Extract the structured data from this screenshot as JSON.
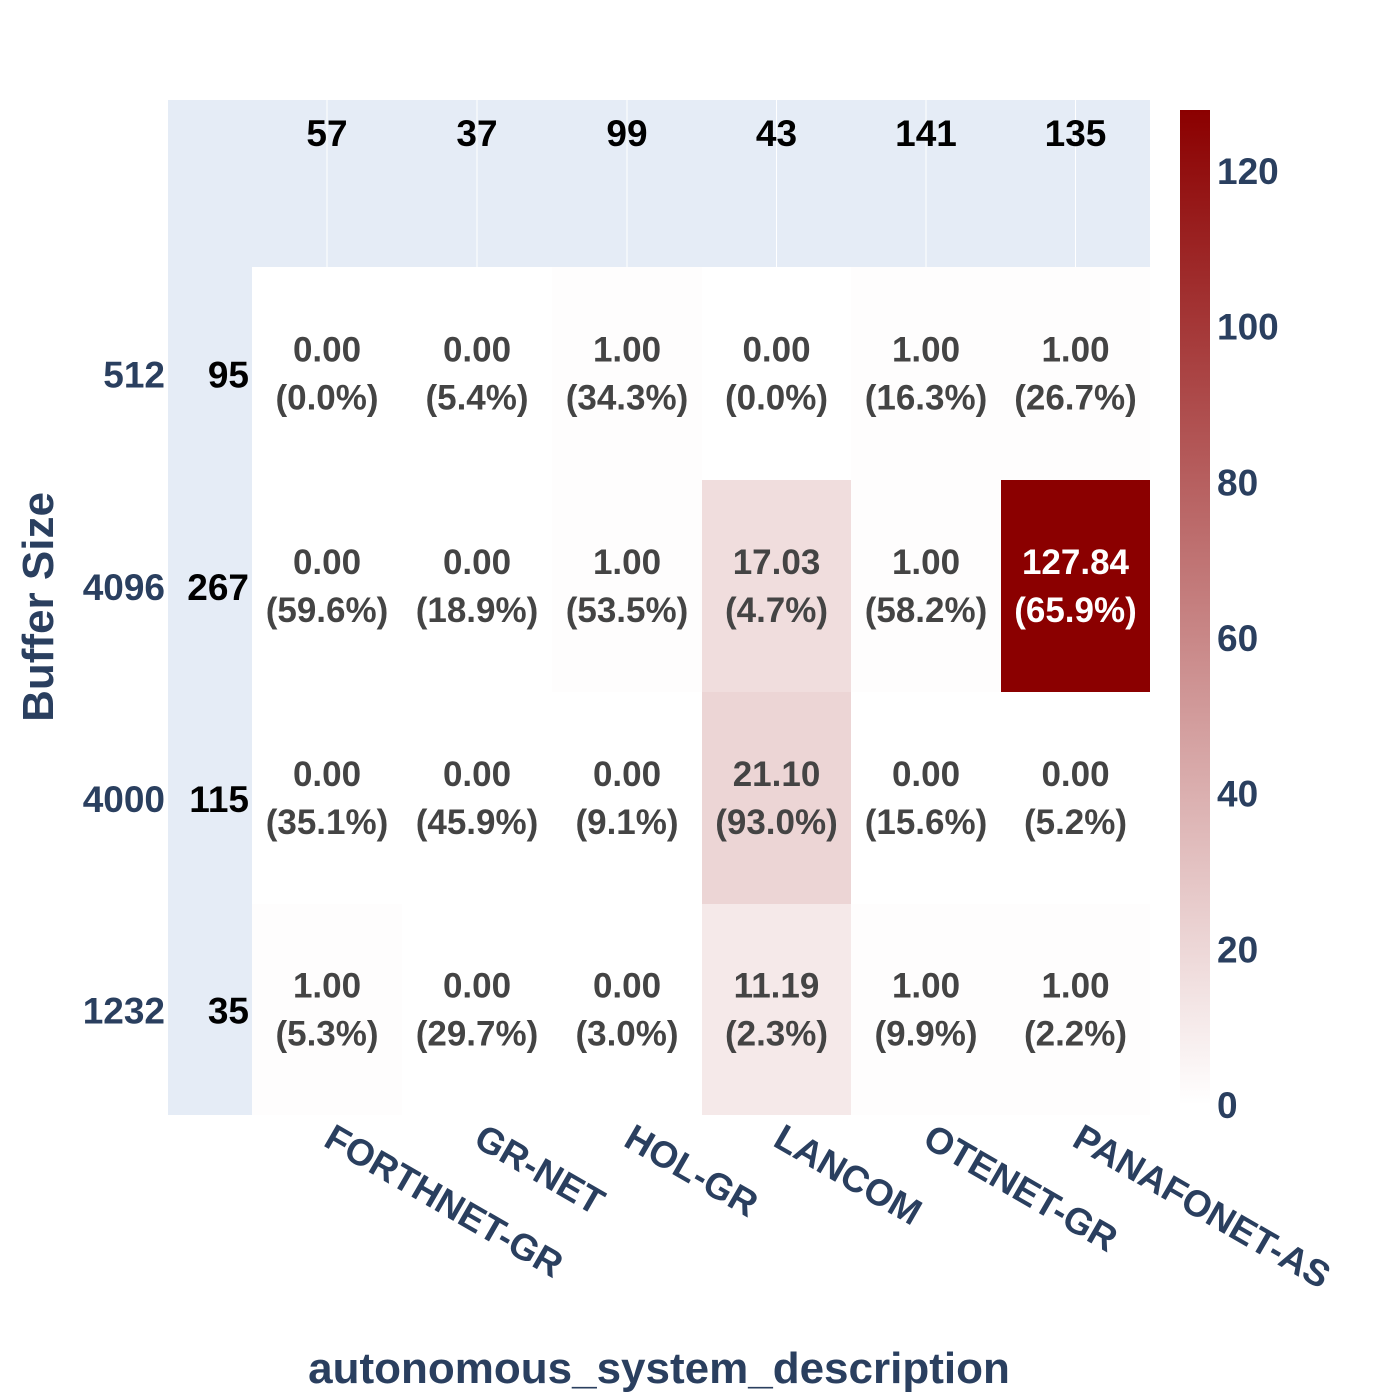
{
  "chart_data": {
    "type": "heatmap",
    "title": "",
    "xlabel": "autonomous_system_description",
    "ylabel": "Buffer Size",
    "x_categories": [
      "FORTHNET-GR",
      "GR-NET",
      "HOL-GR",
      "LANCOM",
      "OTENET-GR",
      "PANAFONET-AS"
    ],
    "y_categories": [
      "512",
      "4096",
      "4000",
      "1232"
    ],
    "column_totals": [
      "57",
      "37",
      "99",
      "43",
      "141",
      "135"
    ],
    "row_totals": [
      "95",
      "267",
      "115",
      "35"
    ],
    "values": [
      [
        0.0,
        0.0,
        1.0,
        0.0,
        1.0,
        1.0
      ],
      [
        0.0,
        0.0,
        1.0,
        17.03,
        1.0,
        127.84
      ],
      [
        0.0,
        0.0,
        0.0,
        21.1,
        0.0,
        0.0
      ],
      [
        1.0,
        0.0,
        0.0,
        11.19,
        1.0,
        1.0
      ]
    ],
    "value_labels": [
      [
        "0.00",
        "0.00",
        "1.00",
        "0.00",
        "1.00",
        "1.00"
      ],
      [
        "0.00",
        "0.00",
        "1.00",
        "17.03",
        "1.00",
        "127.84"
      ],
      [
        "0.00",
        "0.00",
        "0.00",
        "21.10",
        "0.00",
        "0.00"
      ],
      [
        "1.00",
        "0.00",
        "0.00",
        "11.19",
        "1.00",
        "1.00"
      ]
    ],
    "percent_labels": [
      [
        "(0.0%)",
        "(5.4%)",
        "(34.3%)",
        "(0.0%)",
        "(16.3%)",
        "(26.7%)"
      ],
      [
        "(59.6%)",
        "(18.9%)",
        "(53.5%)",
        "(4.7%)",
        "(58.2%)",
        "(65.9%)"
      ],
      [
        "(35.1%)",
        "(45.9%)",
        "(9.1%)",
        "(93.0%)",
        "(15.6%)",
        "(5.2%)"
      ],
      [
        "(5.3%)",
        "(29.7%)",
        "(3.0%)",
        "(2.3%)",
        "(9.9%)",
        "(2.2%)"
      ]
    ],
    "colorscale": {
      "min": 0,
      "max": 127.84,
      "low_color": "#ffffff",
      "high_color": "#8b0000"
    },
    "colorbar_ticks": [
      0,
      20,
      40,
      60,
      80,
      100,
      120
    ],
    "colors": {
      "panel_bg": "#e5ecf6",
      "axis_text": "#2a3f5f",
      "cell_text": "#444444",
      "cell_text_dark_bg": "#ffffff",
      "total_text": "#000000"
    }
  }
}
